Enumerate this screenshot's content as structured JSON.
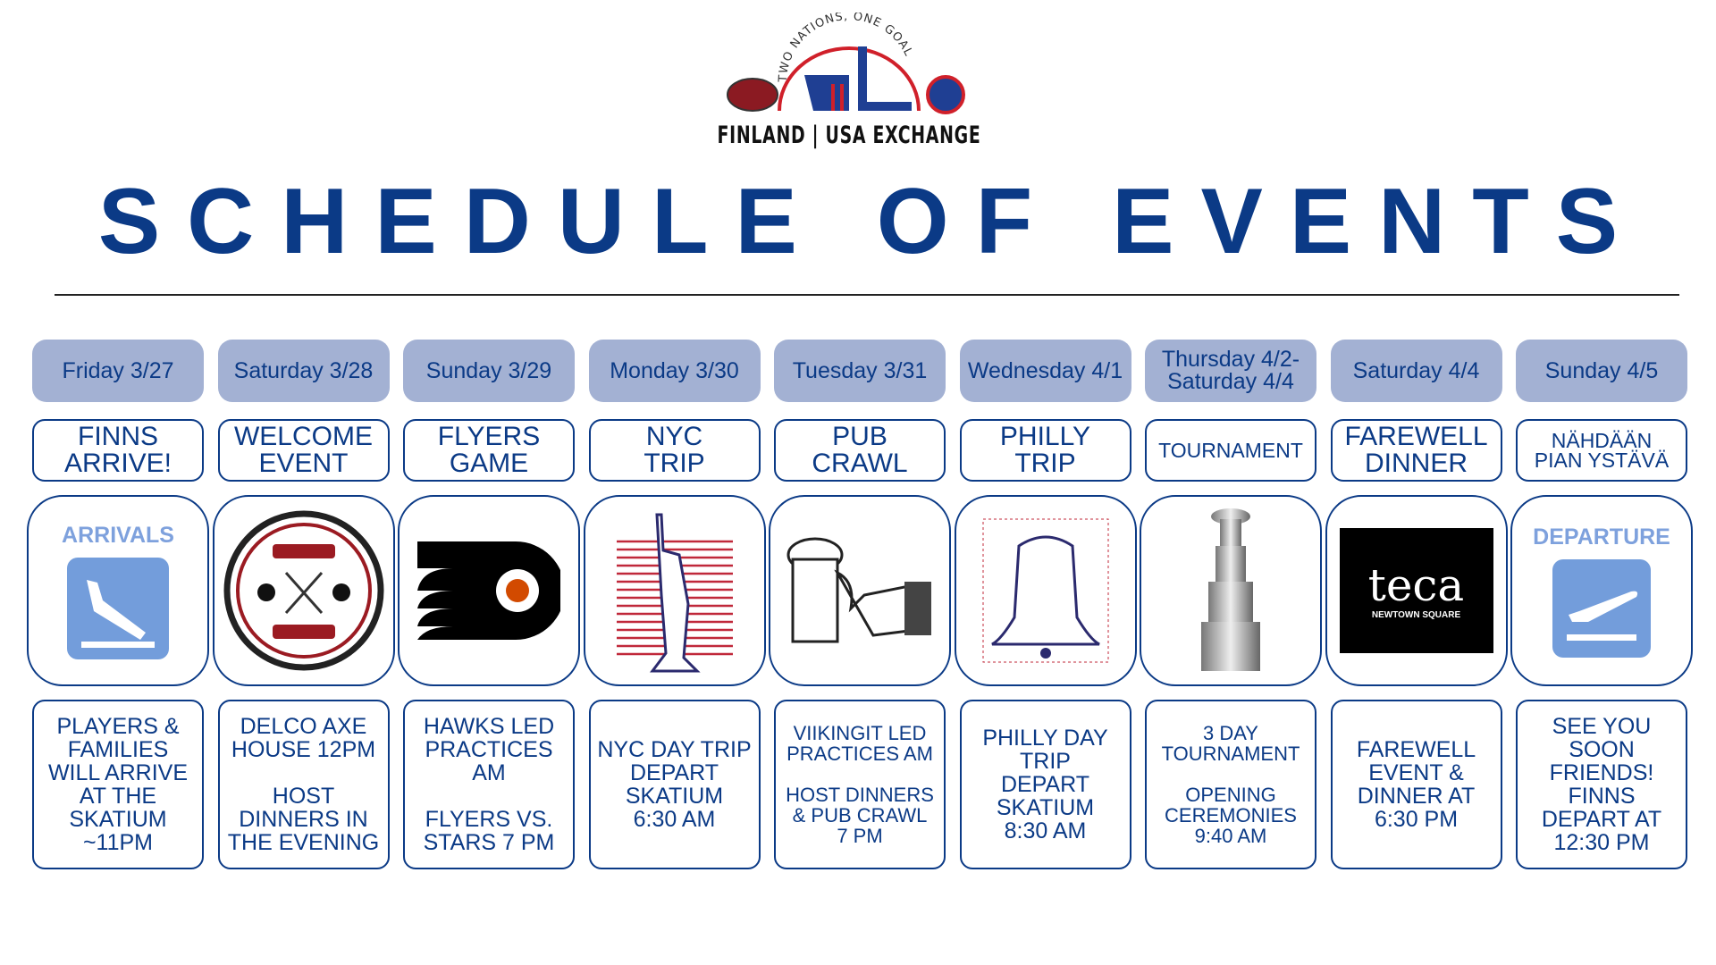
{
  "header": {
    "logo_tagline": "TWO NATIONS, ONE GOAL",
    "logo_text": "FINLAND | USA EXCHANGE",
    "title": "SCHEDULE OF EVENTS"
  },
  "colors": {
    "primary": "#0b3a86",
    "date_bg": "#a3b1d3",
    "accent": "#7ea1dd"
  },
  "days": [
    {
      "date": "Friday 3/27",
      "event": "FINNS\nARRIVE!",
      "image": "arrivals-icon",
      "image_label": "ARRIVALS",
      "desc": "PLAYERS &\nFAMILIES\nWILL ARRIVE\nAT THE\nSKATIUM\n~11PM"
    },
    {
      "date": "Saturday 3/28",
      "event": "WELCOME\nEVENT",
      "image": "delco-axe-house-logo",
      "desc": "DELCO AXE\nHOUSE 12PM\n\nHOST\nDINNERS IN\nTHE EVENING"
    },
    {
      "date": "Sunday 3/29",
      "event": "FLYERS\nGAME",
      "image": "flyers-logo",
      "desc": "HAWKS LED\nPRACTICES\nAM\n\nFLYERS VS.\nSTARS 7 PM"
    },
    {
      "date": "Monday 3/30",
      "event": "NYC\nTRIP",
      "image": "statue-of-liberty-icon",
      "desc": "NYC DAY TRIP\nDEPART\nSKATIUM\n6:30 AM"
    },
    {
      "date": "Tuesday 3/31",
      "event": "PUB\nCRAWL",
      "image": "beer-mug-icon",
      "desc": "VIIKINGIT LED\nPRACTICES AM\n\nHOST DINNERS\n& PUB CRAWL\n7 PM",
      "small": true
    },
    {
      "date": "Wednesday 4/1",
      "event": "PHILLY\nTRIP",
      "image": "liberty-bell-icon",
      "desc": "PHILLY DAY\nTRIP\nDEPART\nSKATIUM\n8:30 AM"
    },
    {
      "date": "Thursday 4/2-\nSaturday 4/4",
      "event": "TOURNAMENT",
      "image": "stanley-cup-icon",
      "desc": "3 DAY\nTOURNAMENT\n\nOPENING\nCEREMONIES\n9:40 AM",
      "small": true,
      "event_small": true
    },
    {
      "date": "Saturday 4/4",
      "event": "FAREWELL\nDINNER",
      "image": "teca-logo",
      "image_text": "teca",
      "image_sub": "NEWTOWN SQUARE",
      "desc": "FAREWELL\nEVENT &\nDINNER AT\n6:30 PM"
    },
    {
      "date": "Sunday 4/5",
      "event": "NÄHDÄÄN\nPIAN YSTÄVÄ",
      "image": "departure-icon",
      "image_label": "DEPARTURE",
      "desc": "SEE YOU\nSOON\nFRIENDS!\nFINNS\nDEPART AT\n12:30 PM",
      "event_small": true
    }
  ]
}
